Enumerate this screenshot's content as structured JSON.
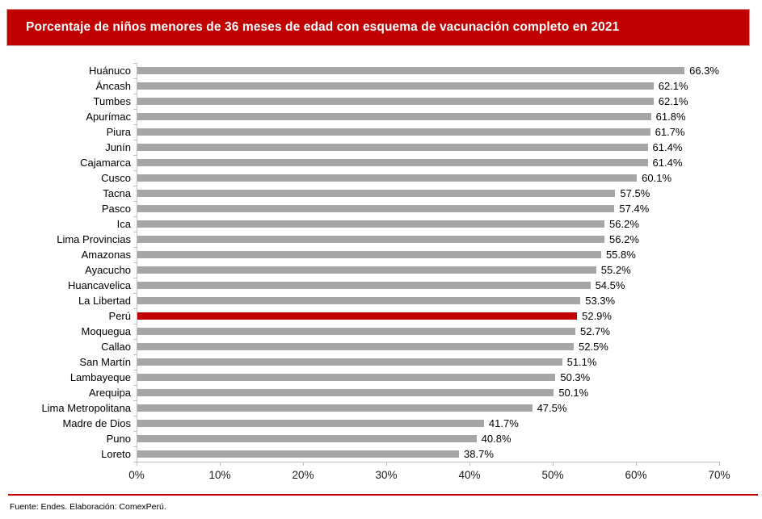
{
  "page": {
    "title": "Porcentaje de niños menores de 36 meses de edad con esquema de vacunación completo en 2021",
    "footer": "Fuente: Endes. Elaboración: ComexPerú."
  },
  "colors": {
    "banner_bg": "#C00000",
    "banner_text": "#FFFFFF",
    "bar_default": "#A6A6A6",
    "bar_highlight": "#C00000",
    "axis_line": "#BFBFBF",
    "separator_line": "#C00000"
  },
  "chart_data": {
    "type": "bar",
    "orientation": "horizontal",
    "title": "Porcentaje de niños menores de 36 meses de edad con esquema de vacunación completo en 2021",
    "xlabel": "",
    "ylabel": "",
    "xlim": [
      0,
      70
    ],
    "xticks": [
      "0%",
      "10%",
      "20%",
      "30%",
      "40%",
      "50%",
      "60%",
      "70%"
    ],
    "grid": false,
    "legend": false,
    "highlight_category": "Perú",
    "categories": [
      "Huánuco",
      "Áncash",
      "Tumbes",
      "Apurímac",
      "Piura",
      "Junín",
      "Cajamarca",
      "Cusco",
      "Tacna",
      "Pasco",
      "Ica",
      "Lima Provincias",
      "Amazonas",
      "Ayacucho",
      "Huancavelica",
      "La Libertad",
      "Perú",
      "Moquegua",
      "Callao",
      "San Martín",
      "Lambayeque",
      "Arequipa",
      "Lima Metropolitana",
      "Madre de Dios",
      "Puno",
      "Loreto"
    ],
    "values": [
      66.3,
      62.1,
      62.1,
      61.8,
      61.7,
      61.4,
      61.4,
      60.1,
      57.5,
      57.4,
      56.2,
      56.2,
      55.8,
      55.2,
      54.5,
      53.3,
      52.9,
      52.7,
      52.5,
      51.1,
      50.3,
      50.1,
      47.5,
      41.7,
      40.8,
      38.7
    ],
    "data_labels": [
      "66.3%",
      "62.1%",
      "62.1%",
      "61.8%",
      "61.7%",
      "61.4%",
      "61.4%",
      "60.1%",
      "57.5%",
      "57.4%",
      "56.2%",
      "56.2%",
      "55.8%",
      "55.2%",
      "54.5%",
      "53.3%",
      "52.9%",
      "52.7%",
      "52.5%",
      "51.1%",
      "50.3%",
      "50.1%",
      "47.5%",
      "41.7%",
      "40.8%",
      "38.7%"
    ]
  }
}
